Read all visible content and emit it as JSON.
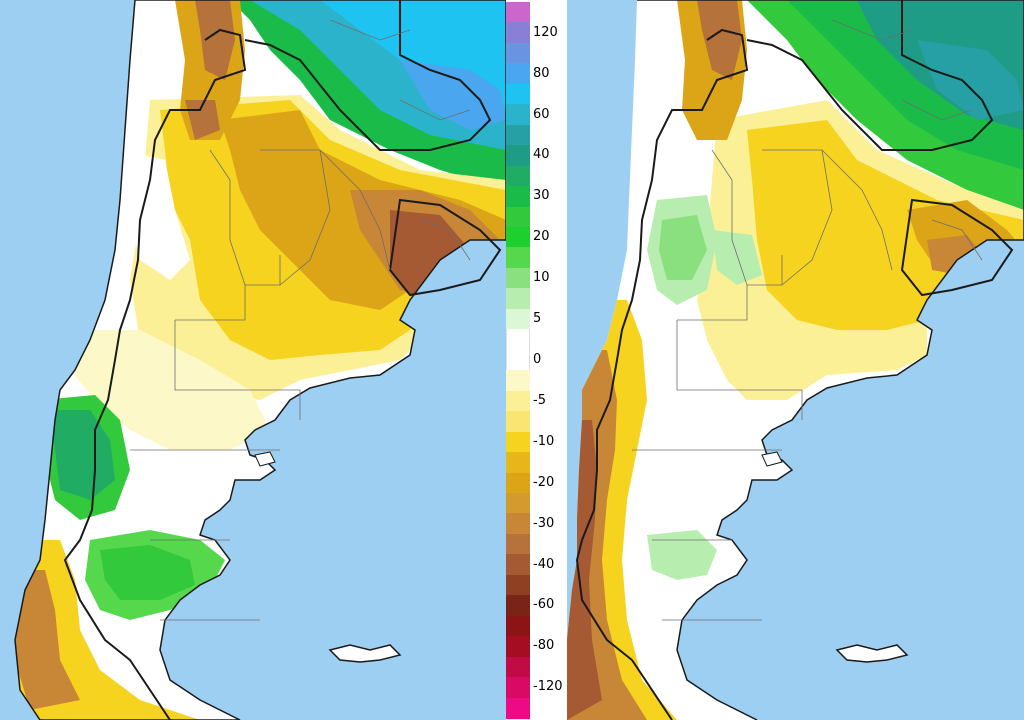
{
  "colors": {
    "ocean": "#9dcff3",
    "land_neutral": "#ffffff",
    "outline": "#1a1a1a",
    "internal_border": "#6e6e6e"
  },
  "legend": {
    "bins": [
      {
        "color": "#cc66cc"
      },
      {
        "color": "#8a7fd6",
        "label": "120"
      },
      {
        "color": "#6a93e0"
      },
      {
        "color": "#4aa6ee",
        "label": "80"
      },
      {
        "color": "#1ec3f2"
      },
      {
        "color": "#2cb3cc",
        "label": "60"
      },
      {
        "color": "#26a0a4"
      },
      {
        "color": "#1e9c86",
        "label": "40"
      },
      {
        "color": "#21ac64"
      },
      {
        "color": "#1abb48",
        "label": "30"
      },
      {
        "color": "#33c93c"
      },
      {
        "color": "#1ed02f",
        "label": "20"
      },
      {
        "color": "#55d84b"
      },
      {
        "color": "#8ae07e",
        "label": "10"
      },
      {
        "color": "#b8edb0"
      },
      {
        "color": "#dcf7d6",
        "label": "5"
      },
      {
        "color": "#ffffff"
      },
      {
        "color": "#ffffff",
        "label": "0"
      },
      {
        "color": "#fdf8c8"
      },
      {
        "color": "#fcf096",
        "label": "-5"
      },
      {
        "color": "#fae472"
      },
      {
        "color": "#f6d31f",
        "label": "-10"
      },
      {
        "color": "#e7b719"
      },
      {
        "color": "#dca417",
        "label": "-20"
      },
      {
        "color": "#d39a2e"
      },
      {
        "color": "#c88637",
        "label": "-30"
      },
      {
        "color": "#b5723b"
      },
      {
        "color": "#a55a34",
        "label": "-40"
      },
      {
        "color": "#8f3f22"
      },
      {
        "color": "#7a2418",
        "label": "-60"
      },
      {
        "color": "#8b1414"
      },
      {
        "color": "#a50d22",
        "label": "-80"
      },
      {
        "color": "#c10b45"
      },
      {
        "color": "#d80a66",
        "label": "-120"
      },
      {
        "color": "#ee0a86"
      }
    ]
  }
}
